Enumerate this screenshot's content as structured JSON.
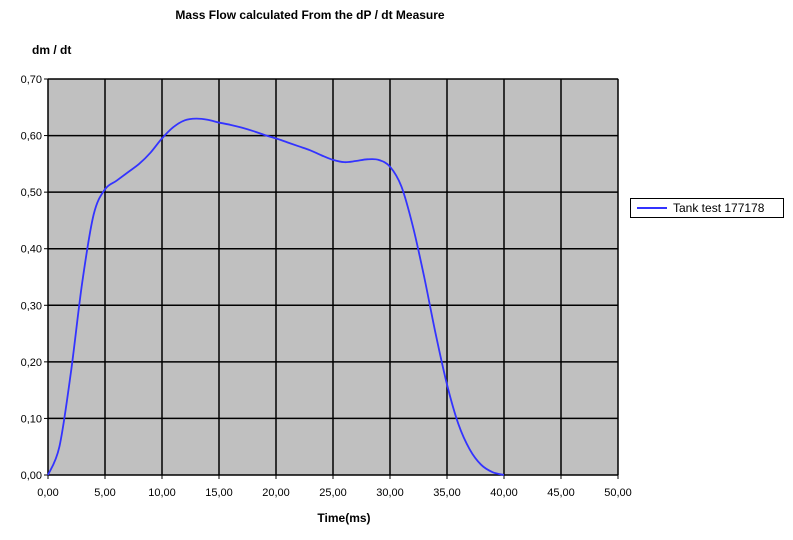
{
  "chart_data": {
    "type": "line",
    "title": "Mass Flow calculated From the dP / dt Measure",
    "xlabel": "Time(ms)",
    "ylabel": "dm / dt",
    "xlim": [
      0,
      50
    ],
    "ylim": [
      0,
      0.7
    ],
    "x_ticks": [
      "0,00",
      "5,00",
      "10,00",
      "15,00",
      "20,00",
      "25,00",
      "30,00",
      "35,00",
      "40,00",
      "45,00",
      "50,00"
    ],
    "y_ticks": [
      "0,00",
      "0,10",
      "0,20",
      "0,30",
      "0,40",
      "0,50",
      "0,60",
      "0,70"
    ],
    "grid": true,
    "legend_position": "right",
    "plot_background": "#c0c0c0",
    "series": [
      {
        "name": "Tank test 177178",
        "color": "#3333ff",
        "x": [
          0,
          1,
          2,
          3,
          4,
          5,
          6,
          7,
          8,
          9,
          10,
          11,
          12,
          13,
          14,
          15,
          16,
          17,
          18,
          19,
          20,
          21,
          22,
          23,
          24,
          25,
          26,
          27,
          28,
          29,
          30,
          31,
          32,
          33,
          34,
          35,
          36,
          37,
          38,
          39,
          40
        ],
        "y": [
          0.0,
          0.05,
          0.18,
          0.34,
          0.46,
          0.505,
          0.52,
          0.535,
          0.55,
          0.57,
          0.595,
          0.615,
          0.627,
          0.63,
          0.628,
          0.623,
          0.619,
          0.614,
          0.608,
          0.601,
          0.595,
          0.588,
          0.581,
          0.574,
          0.565,
          0.557,
          0.553,
          0.555,
          0.558,
          0.557,
          0.545,
          0.51,
          0.44,
          0.35,
          0.25,
          0.16,
          0.09,
          0.045,
          0.018,
          0.005,
          0.0
        ]
      }
    ]
  }
}
